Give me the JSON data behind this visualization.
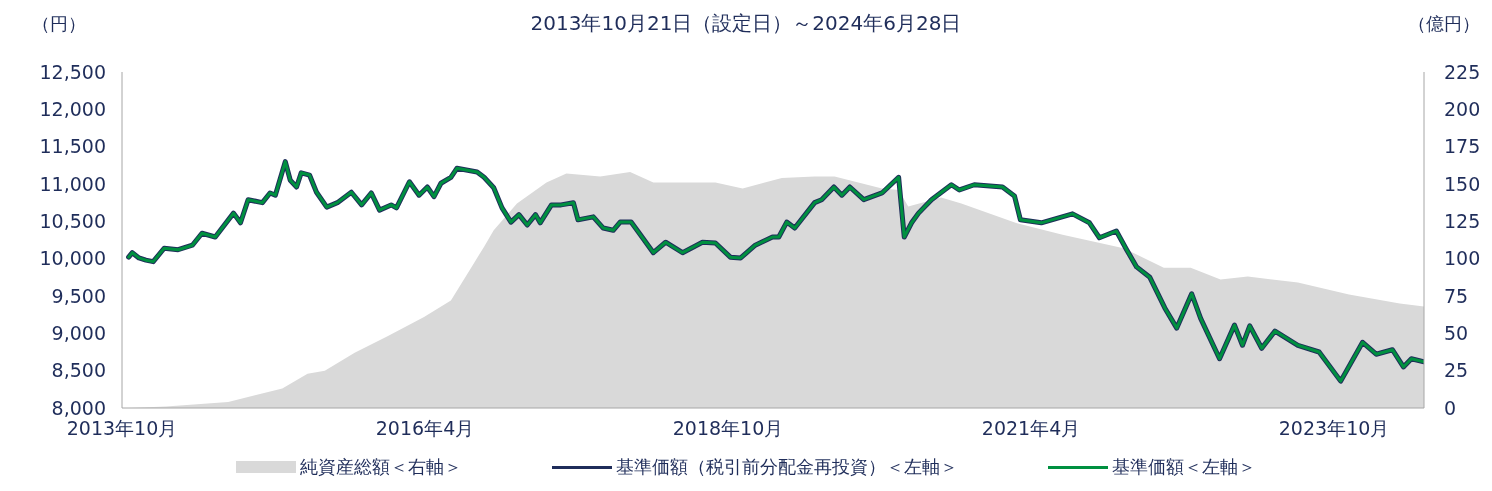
{
  "chart_data": {
    "type": "line",
    "title": "2013年10月21日（設定日）～2024年6月28日",
    "ylabel": "（円）",
    "y2label": "（億円）",
    "xlim": [
      "2013-10-01",
      "2024-06-28"
    ],
    "xticks": [
      {
        "value": "2013-10",
        "label": "2013年10月"
      },
      {
        "value": "2016-04",
        "label": "2016年4月"
      },
      {
        "value": "2018-10",
        "label": "2018年10月"
      },
      {
        "value": "2021-04",
        "label": "2021年4月"
      },
      {
        "value": "2023-10",
        "label": "2023年10月"
      }
    ],
    "ylim": [
      8000,
      12500
    ],
    "yticks": [
      {
        "value": 8000,
        "label": "8,000"
      },
      {
        "value": 8500,
        "label": "8,500"
      },
      {
        "value": 9000,
        "label": "9,000"
      },
      {
        "value": 9500,
        "label": "9,500"
      },
      {
        "value": 10000,
        "label": "10,000"
      },
      {
        "value": 10500,
        "label": "10,500"
      },
      {
        "value": 11000,
        "label": "11,000"
      },
      {
        "value": 11500,
        "label": "11,500"
      },
      {
        "value": 12000,
        "label": "12,000"
      },
      {
        "value": 12500,
        "label": "12,500"
      }
    ],
    "y2lim": [
      0,
      225
    ],
    "y2ticks": [
      0,
      25,
      50,
      75,
      100,
      125,
      150,
      175,
      200,
      225
    ],
    "legend": "bottom",
    "series": [
      {
        "name": "純資産総額＜右軸＞",
        "type": "area",
        "axis": "y2",
        "color": "#d9d9d9",
        "x": [
          "2013-10-21",
          "2014-02-11",
          "2014-08-17",
          "2015-01-27",
          "2015-04-13",
          "2015-06-04",
          "2015-09-02",
          "2015-12-10",
          "2016-03-29",
          "2016-06-18",
          "2016-08-18",
          "2016-09-26",
          "2016-10-25",
          "2017-01-03",
          "2017-04-02",
          "2017-06-01",
          "2017-09-11",
          "2017-12-10",
          "2018-02-18",
          "2018-08-24",
          "2018-11-14",
          "2019-03-12",
          "2019-06-19",
          "2019-08-18",
          "2020-01-08",
          "2020-02-27",
          "2020-03-27",
          "2020-07-04",
          "2020-09-03",
          "2021-02-13",
          "2021-07-05",
          "2022-01-05",
          "2022-05-06",
          "2022-07-26",
          "2022-10-24",
          "2023-01-14",
          "2023-06-14",
          "2023-11-15",
          "2024-04-16",
          "2024-06-28"
        ],
        "values": [
          0,
          1,
          4,
          13,
          23,
          25,
          37,
          48,
          61,
          72,
          94,
          108,
          119,
          137,
          151,
          157,
          155,
          158,
          151,
          151,
          147,
          154,
          155,
          155,
          147,
          146,
          135,
          141,
          137,
          124,
          116,
          107,
          94,
          94,
          86,
          88,
          84,
          76,
          70,
          68
        ]
      },
      {
        "name": "基準価額（税引前分配金再投資）＜左軸＞",
        "color": "#1f2d5a",
        "x": [
          "2013-10-21",
          "2013-11-01",
          "2013-11-21",
          "2013-12-12",
          "2014-01-03",
          "2014-02-05",
          "2014-03-19",
          "2014-05-01",
          "2014-05-30",
          "2014-07-09",
          "2014-09-02",
          "2014-09-23",
          "2014-10-16",
          "2014-11-28",
          "2014-12-21",
          "2015-01-06",
          "2015-02-05",
          "2015-02-20",
          "2015-03-11",
          "2015-03-25",
          "2015-04-19",
          "2015-05-10",
          "2015-06-10",
          "2015-07-12",
          "2015-08-23",
          "2015-09-23",
          "2015-10-22",
          "2015-11-16",
          "2015-12-21",
          "2016-01-06",
          "2016-02-14",
          "2016-03-14",
          "2016-04-08",
          "2016-04-28",
          "2016-05-19",
          "2016-06-18",
          "2016-07-06",
          "2016-09-05",
          "2016-09-26",
          "2016-10-25",
          "2016-11-19",
          "2016-12-16",
          "2017-01-09",
          "2017-02-03",
          "2017-02-28",
          "2017-03-14",
          "2017-04-17",
          "2017-05-16",
          "2017-06-22",
          "2017-07-06",
          "2017-08-21",
          "2017-09-20",
          "2017-10-20",
          "2017-11-10",
          "2017-12-13",
          "2018-01-10",
          "2018-02-18",
          "2018-03-27",
          "2018-05-17",
          "2018-07-16",
          "2018-08-24",
          "2018-10-08",
          "2018-11-08",
          "2018-12-22",
          "2019-02-12",
          "2019-03-03",
          "2019-03-27",
          "2019-04-20",
          "2019-06-19",
          "2019-07-10",
          "2019-08-16",
          "2019-09-09",
          "2019-10-03",
          "2019-11-14",
          "2020-01-08",
          "2020-02-27",
          "2020-03-15",
          "2020-04-06",
          "2020-04-27",
          "2020-06-05",
          "2020-08-04",
          "2020-08-28",
          "2020-10-12",
          "2021-01-05",
          "2021-02-10",
          "2021-02-28",
          "2021-05-02",
          "2021-08-04",
          "2021-09-24",
          "2021-10-24",
          "2021-12-14",
          "2022-01-14",
          "2022-02-13",
          "2022-03-25",
          "2022-05-09",
          "2022-06-14",
          "2022-07-29",
          "2022-08-25",
          "2022-10-21",
          "2022-12-05",
          "2022-12-29",
          "2023-01-20",
          "2023-02-25",
          "2023-04-06",
          "2023-06-14",
          "2023-08-17",
          "2023-10-21",
          "2023-12-26",
          "2024-02-05",
          "2024-03-25",
          "2024-04-27",
          "2024-05-21",
          "2024-06-28"
        ],
        "values": [
          10020,
          10080,
          10010,
          9980,
          9960,
          10140,
          10120,
          10180,
          10340,
          10290,
          10610,
          10480,
          10790,
          10750,
          10880,
          10850,
          11300,
          11050,
          10960,
          11150,
          11120,
          10890,
          10690,
          10750,
          10890,
          10720,
          10880,
          10650,
          10720,
          10680,
          11030,
          10850,
          10960,
          10830,
          11010,
          11090,
          11210,
          11160,
          11090,
          10950,
          10680,
          10490,
          10590,
          10450,
          10590,
          10480,
          10720,
          10720,
          10750,
          10520,
          10560,
          10410,
          10380,
          10490,
          10490,
          10320,
          10080,
          10220,
          10080,
          10220,
          10210,
          10020,
          10010,
          10180,
          10290,
          10290,
          10490,
          10410,
          10750,
          10790,
          10960,
          10850,
          10960,
          10790,
          10880,
          11090,
          10290,
          10480,
          10610,
          10790,
          10990,
          10920,
          10990,
          10960,
          10840,
          10520,
          10480,
          10600,
          10480,
          10280,
          10370,
          10120,
          9890,
          9750,
          9340,
          9070,
          9530,
          9200,
          8660,
          9110,
          8840,
          9100,
          8800,
          9030,
          8840,
          8750,
          8360,
          8880,
          8720,
          8780,
          8550,
          8660,
          8620
        ]
      },
      {
        "name": "基準価額＜左軸＞",
        "color": "#009040",
        "x": [
          "2013-10-21",
          "2013-11-01",
          "2013-11-21",
          "2013-12-12",
          "2014-01-03",
          "2014-02-05",
          "2014-03-19",
          "2014-05-01",
          "2014-05-30",
          "2014-07-09",
          "2014-09-02",
          "2014-09-23",
          "2014-10-16",
          "2014-11-28",
          "2014-12-21",
          "2015-01-06",
          "2015-02-05",
          "2015-02-20",
          "2015-03-11",
          "2015-03-25",
          "2015-04-19",
          "2015-05-10",
          "2015-06-10",
          "2015-07-12",
          "2015-08-23",
          "2015-09-23",
          "2015-10-22",
          "2015-11-16",
          "2015-12-21",
          "2016-01-06",
          "2016-02-14",
          "2016-03-14",
          "2016-04-08",
          "2016-04-28",
          "2016-05-19",
          "2016-06-18",
          "2016-07-06",
          "2016-09-05",
          "2016-09-26",
          "2016-10-25",
          "2016-11-19",
          "2016-12-16",
          "2017-01-09",
          "2017-02-03",
          "2017-02-28",
          "2017-03-14",
          "2017-04-17",
          "2017-05-16",
          "2017-06-22",
          "2017-07-06",
          "2017-08-21",
          "2017-09-20",
          "2017-10-20",
          "2017-11-10",
          "2017-12-13",
          "2018-01-10",
          "2018-02-18",
          "2018-03-27",
          "2018-05-17",
          "2018-07-16",
          "2018-08-24",
          "2018-10-08",
          "2018-11-08",
          "2018-12-22",
          "2019-02-12",
          "2019-03-03",
          "2019-03-27",
          "2019-04-20",
          "2019-06-19",
          "2019-07-10",
          "2019-08-16",
          "2019-09-09",
          "2019-10-03",
          "2019-11-14",
          "2020-01-08",
          "2020-02-27",
          "2020-03-15",
          "2020-04-06",
          "2020-04-27",
          "2020-06-05",
          "2020-08-04",
          "2020-08-28",
          "2020-10-12",
          "2021-01-05",
          "2021-02-10",
          "2021-02-28",
          "2021-05-02",
          "2021-08-04",
          "2021-09-24",
          "2021-10-24",
          "2021-12-14",
          "2022-01-14",
          "2022-02-13",
          "2022-03-25",
          "2022-05-09",
          "2022-06-14",
          "2022-07-29",
          "2022-08-25",
          "2022-10-21",
          "2022-12-05",
          "2022-12-29",
          "2023-01-20",
          "2023-02-25",
          "2023-04-06",
          "2023-06-14",
          "2023-08-17",
          "2023-10-21",
          "2023-12-26",
          "2024-02-05",
          "2024-03-25",
          "2024-04-27",
          "2024-05-21",
          "2024-06-28"
        ],
        "values": [
          10020,
          10080,
          10010,
          9980,
          9960,
          10140,
          10120,
          10180,
          10340,
          10290,
          10610,
          10480,
          10790,
          10750,
          10880,
          10850,
          11300,
          11050,
          10960,
          11150,
          11120,
          10890,
          10690,
          10750,
          10890,
          10720,
          10880,
          10650,
          10720,
          10680,
          11030,
          10850,
          10960,
          10830,
          11010,
          11090,
          11210,
          11160,
          11090,
          10950,
          10680,
          10490,
          10590,
          10450,
          10590,
          10480,
          10720,
          10720,
          10750,
          10520,
          10560,
          10410,
          10380,
          10490,
          10490,
          10320,
          10080,
          10220,
          10080,
          10220,
          10210,
          10020,
          10010,
          10180,
          10290,
          10290,
          10490,
          10410,
          10750,
          10790,
          10960,
          10850,
          10960,
          10790,
          10880,
          11090,
          10290,
          10480,
          10610,
          10790,
          10990,
          10920,
          10990,
          10960,
          10840,
          10520,
          10480,
          10600,
          10480,
          10280,
          10370,
          10120,
          9890,
          9750,
          9340,
          9070,
          9530,
          9200,
          8660,
          9110,
          8840,
          9100,
          8800,
          9030,
          8840,
          8750,
          8360,
          8880,
          8720,
          8780,
          8550,
          8660,
          8620
        ]
      }
    ]
  }
}
